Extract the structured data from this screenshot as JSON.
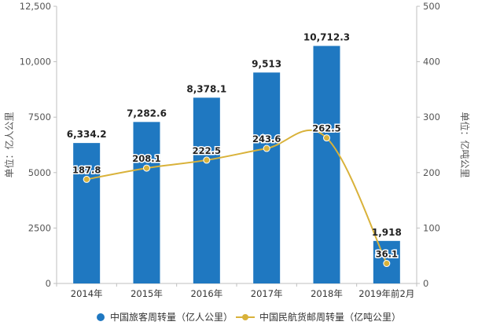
{
  "chart_data": {
    "type": "bar+line",
    "categories": [
      "2014年",
      "2015年",
      "2016年",
      "2017年",
      "2018年",
      "2019年前2月"
    ],
    "series": [
      {
        "name": "中国旅客周转量（亿人公里）",
        "kind": "bar",
        "axis": "left",
        "values": [
          6334.2,
          7282.6,
          8378.1,
          9513,
          10712.3,
          1918
        ],
        "labels": [
          "6,334.2",
          "7,282.6",
          "8,378.1",
          "9,513",
          "10,712.3",
          "1,918"
        ],
        "color": "#1f78c1"
      },
      {
        "name": "中国民航货邮周转量（亿吨公里）",
        "kind": "line",
        "axis": "right",
        "values": [
          187.8,
          208.1,
          222.5,
          243.6,
          262.5,
          36.1
        ],
        "labels": [
          "187.8",
          "208.1",
          "222.5",
          "243.6",
          "262.5",
          "36.1"
        ],
        "color": "#d9b23a"
      }
    ],
    "ylabel_left": "单位：亿人公里",
    "ylabel_right": "单位：亿吨公里",
    "ylim_left": [
      0,
      12500
    ],
    "ylim_right": [
      0,
      500
    ],
    "yticks_left": [
      "0",
      "2500",
      "5000",
      "7500",
      "10,000",
      "12,500"
    ],
    "yticks_right": [
      "0",
      "100",
      "200",
      "300",
      "400",
      "500"
    ],
    "grid": false,
    "legend_position": "bottom"
  }
}
